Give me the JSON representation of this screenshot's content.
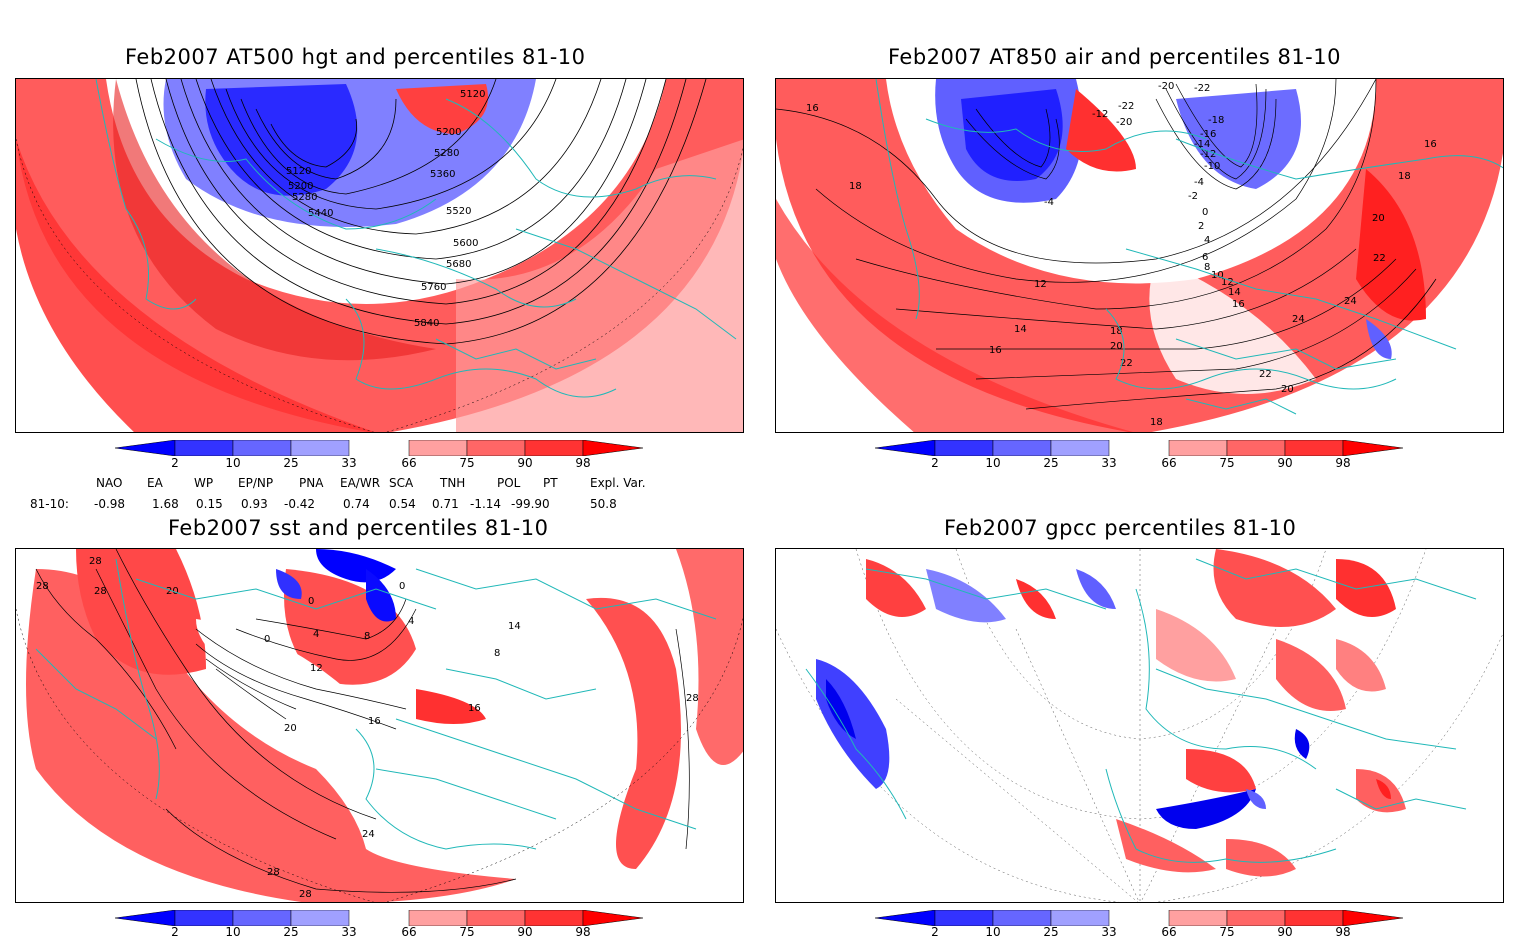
{
  "panels": [
    {
      "id": "at500",
      "title": "Feb2007 AT500 hgt and percentiles 81-10",
      "contour_labels": [
        "5120",
        "5120",
        "5200",
        "5200",
        "5280",
        "5280",
        "5360",
        "5440",
        "5520",
        "5600",
        "5680",
        "5760",
        "5840"
      ]
    },
    {
      "id": "at850",
      "title": "Feb2007 AT850 air and percentiles 81-10",
      "contour_labels": [
        "16",
        "16",
        "18",
        "18",
        "20",
        "22",
        "24",
        "24",
        "12",
        "14",
        "16",
        "18",
        "20",
        "22",
        "22",
        "20",
        "18",
        "0",
        "2",
        "4",
        "6",
        "8",
        "10",
        "12",
        "14",
        "16",
        "-2",
        "-4",
        "-10",
        "-12",
        "-14",
        "-16",
        "-18",
        "-20",
        "-22",
        "-12",
        "-22",
        "-20",
        "-4"
      ]
    },
    {
      "id": "sst",
      "title": "Feb2007 sst and percentiles 81-10",
      "contour_labels": [
        "28",
        "28",
        "28",
        "20",
        "0",
        "4",
        "8",
        "12",
        "16",
        "20",
        "24",
        "28",
        "28",
        "16",
        "0",
        "0",
        "4",
        "8",
        "14",
        "28"
      ]
    },
    {
      "id": "gpcc",
      "title": "Feb2007 gpcc percentiles 81-10",
      "contour_labels": []
    }
  ],
  "colorbar": {
    "tick_labels": [
      "2",
      "10",
      "25",
      "33",
      "66",
      "75",
      "90",
      "98"
    ],
    "colors": [
      "#0000ff",
      "#3333ff",
      "#6666ff",
      "#a0a0ff",
      "#ffffff",
      "#ffa0a0",
      "#ff6666",
      "#ff3333",
      "#ff0000"
    ]
  },
  "teleconnections": {
    "header": [
      "NAO",
      "EA",
      "WP",
      "EP/NP",
      "PNA",
      "EA/WR",
      "SCA",
      "TNH",
      "POL",
      "PT",
      "Expl. Var."
    ],
    "row_label": "81-10:",
    "values": [
      "-0.98",
      "1.68",
      "0.15",
      "0.93",
      "-0.42",
      "0.74",
      "0.54",
      "0.71",
      "-1.14",
      "-99.90",
      "50.8"
    ]
  },
  "colors": {
    "land_border": "#20b8b8",
    "contour": "#000000"
  }
}
